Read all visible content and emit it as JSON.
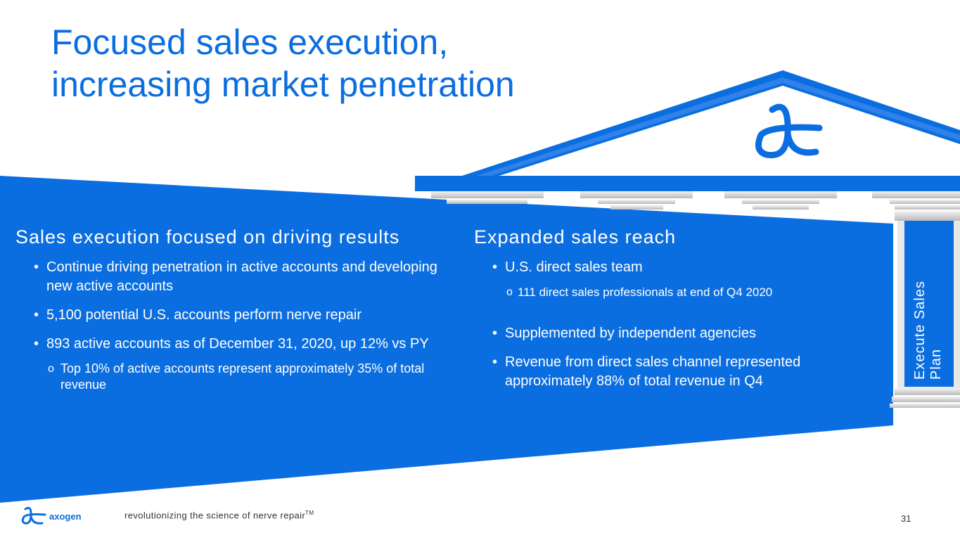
{
  "title": {
    "line1": "Focused sales execution,",
    "line2": "increasing market penetration"
  },
  "left": {
    "heading": "Sales execution focused on driving results",
    "bullet1": "Continue driving penetration in active accounts and developing new active accounts",
    "bullet2": "5,100 potential U.S. accounts perform nerve repair",
    "bullet3": "893 active accounts as of December 31, 2020, up 12% vs PY",
    "sub1": "Top 10% of active accounts represent approximately 35% of total revenue"
  },
  "right": {
    "heading": "Expanded sales reach",
    "bullet1": "U.S. direct sales team",
    "sub1": "111 direct sales professionals at end of Q4 2020",
    "bullet2": "Supplemented by independent agencies",
    "bullet3": "Revenue from direct sales channel represented approximately 88% of total revenue in Q4"
  },
  "pillar_label": "Execute Sales Plan",
  "footer": {
    "brand": "axogen",
    "tagline": "revolutionizing the science of nerve repair",
    "tm": "TM",
    "page": "31"
  },
  "colors": {
    "brand_blue": "#0b6ee0"
  },
  "icons": [
    "axogen-ae-logo-icon",
    "temple-roof-graphic",
    "column-graphic"
  ]
}
